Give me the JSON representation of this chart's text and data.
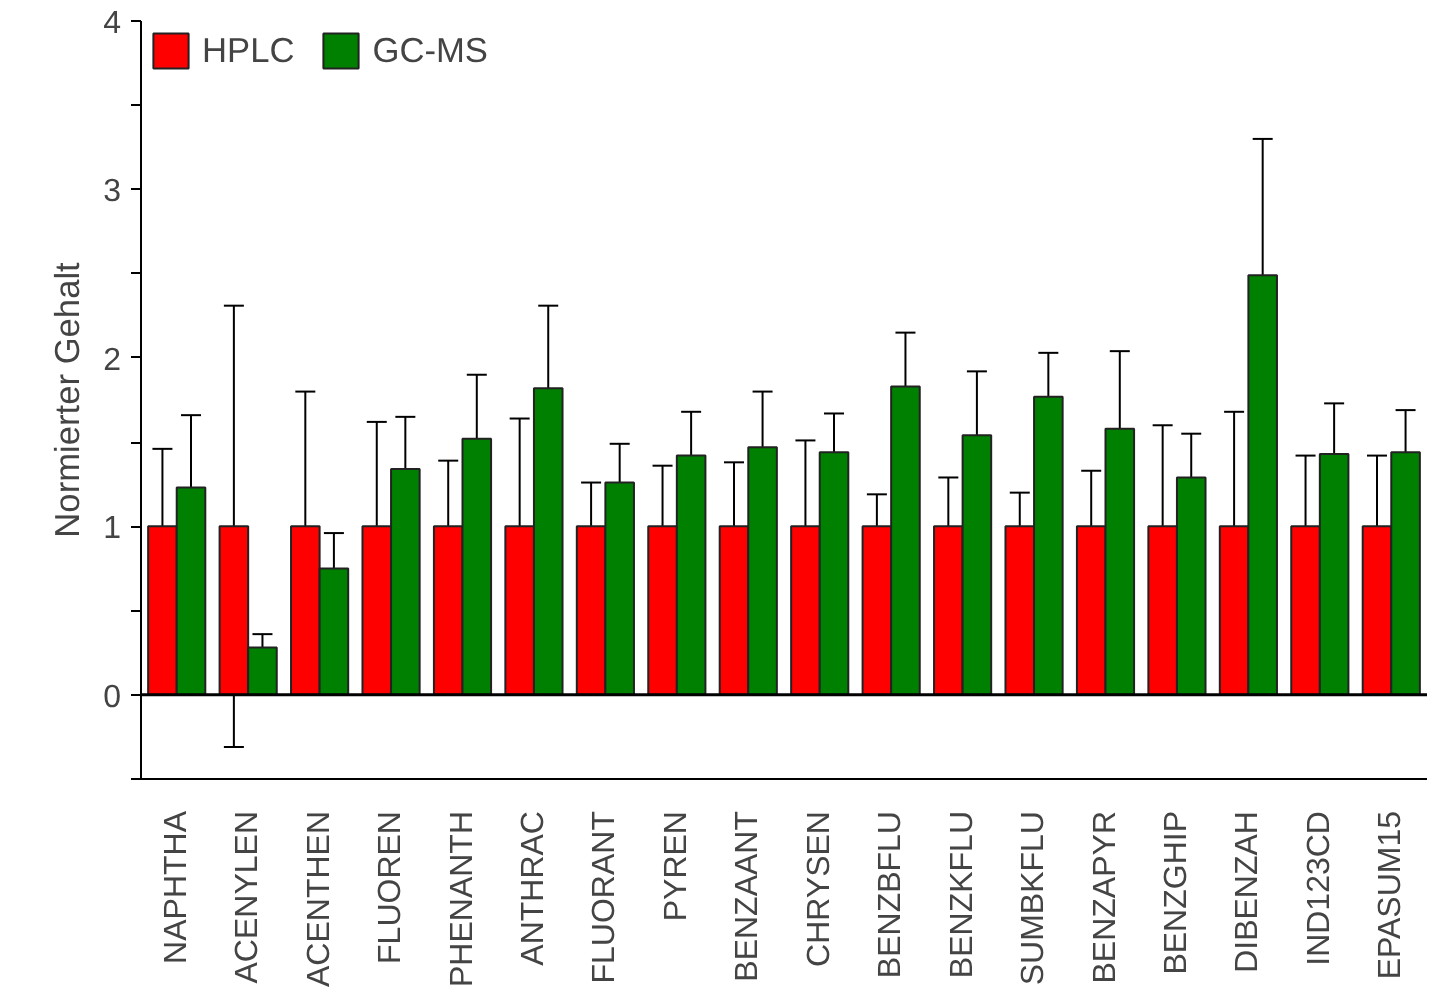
{
  "chart_data": {
    "type": "bar",
    "ylabel": "Normierter Gehalt",
    "categories": [
      "NAPHTHA",
      "ACENYLEN",
      "ACENTHEN",
      "FLUOREN",
      "PHENANTH",
      "ANTHRAC",
      "FLUORANT",
      "PYREN",
      "BENZAANT",
      "CHRYSEN",
      "BENZBFLU",
      "BENZKFLU",
      "SUMBKFLU",
      "BENZAPYR",
      "BENZGHIP",
      "DIBENZAH",
      "IND123CD",
      "EPASUM15"
    ],
    "series": [
      {
        "name": "HPLC",
        "color": "#ff0000",
        "values": [
          1,
          1,
          1,
          1,
          1,
          1,
          1,
          1,
          1,
          1,
          1,
          1,
          1,
          1,
          1,
          1,
          1,
          1
        ],
        "errors": [
          0.46,
          1.31,
          0.8,
          0.62,
          0.39,
          0.64,
          0.26,
          0.36,
          0.38,
          0.51,
          0.19,
          0.29,
          0.2,
          0.33,
          0.6,
          0.68,
          0.42,
          0.42
        ]
      },
      {
        "name": "GC-MS",
        "color": "#008000",
        "values": [
          1.23,
          0.28,
          0.75,
          1.34,
          1.52,
          1.82,
          1.26,
          1.42,
          1.47,
          1.44,
          1.83,
          1.54,
          1.77,
          1.58,
          1.29,
          2.49,
          1.43,
          1.44
        ],
        "errors": [
          0.43,
          0.08,
          0.21,
          0.31,
          0.38,
          0.49,
          0.23,
          0.26,
          0.33,
          0.23,
          0.32,
          0.38,
          0.26,
          0.46,
          0.26,
          0.81,
          0.3,
          0.25
        ]
      }
    ],
    "ylim": [
      -0.5,
      4
    ],
    "yticks": [
      {
        "value": -0.5,
        "label": null
      },
      0,
      {
        "value": 0.5,
        "label": null
      },
      1,
      {
        "value": 1.5,
        "label": null
      },
      2,
      {
        "value": 2.5,
        "label": null
      },
      3,
      {
        "value": 3.5,
        "label": null
      },
      4
    ],
    "ref_lines": [
      {
        "axis": "y",
        "value": 0,
        "label": null,
        "color": "#000000"
      }
    ],
    "grid": false,
    "legend": "top left"
  }
}
